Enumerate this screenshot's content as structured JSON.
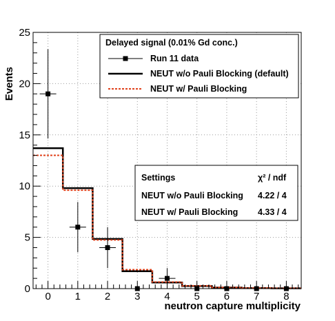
{
  "chart_data": {
    "type": "histogram",
    "xlabel": "neutron capture multiplicity",
    "ylabel": "Events",
    "xlim": [
      -0.5,
      8.5
    ],
    "ylim": [
      0,
      25
    ],
    "x_ticks": [
      "0",
      "1",
      "2",
      "3",
      "4",
      "5",
      "6",
      "7",
      "8"
    ],
    "y_ticks": [
      "0",
      "5",
      "10",
      "15",
      "20",
      "25"
    ],
    "grid": true,
    "legend": {
      "title": "Delayed signal (0.01% Gd conc.)",
      "placement": "top-right",
      "entries": [
        "Run 11 data",
        "NEUT w/o Pauli Blocking (default)",
        "NEUT w/ Pauli Blocking"
      ]
    },
    "stats_box": {
      "title": "Settings",
      "column_header": "χ²  /  ndf",
      "rows": [
        {
          "label": "NEUT w/o  Pauli Blocking",
          "value": "4.22 / 4"
        },
        {
          "label": "NEUT w/ Pauli Blocking",
          "value": "4.33 / 4"
        }
      ]
    },
    "series": [
      {
        "name": "Run 11 data",
        "kind": "points",
        "color": "#000000",
        "x": [
          0,
          1,
          2,
          3,
          4,
          5,
          6,
          7,
          8
        ],
        "y": [
          19,
          6,
          4,
          0,
          1,
          0,
          0,
          0,
          0
        ],
        "err": [
          4.36,
          2.45,
          2.0,
          0,
          1.0,
          0,
          0,
          0,
          0
        ]
      },
      {
        "name": "NEUT w/o Pauli Blocking (default)",
        "kind": "step",
        "color": "#000000",
        "x": [
          0,
          1,
          2,
          3,
          4,
          5,
          6,
          7,
          8
        ],
        "y": [
          13.7,
          9.8,
          4.85,
          1.7,
          0.6,
          0.25,
          0.1,
          0.05,
          0.03
        ]
      },
      {
        "name": "NEUT w/ Pauli Blocking",
        "kind": "step",
        "color": "#e0401a",
        "x": [
          0,
          1,
          2,
          3,
          4,
          5,
          6,
          7,
          8
        ],
        "y": [
          13.0,
          9.6,
          4.75,
          1.85,
          0.65,
          0.28,
          0.12,
          0.06,
          0.03
        ]
      }
    ]
  }
}
